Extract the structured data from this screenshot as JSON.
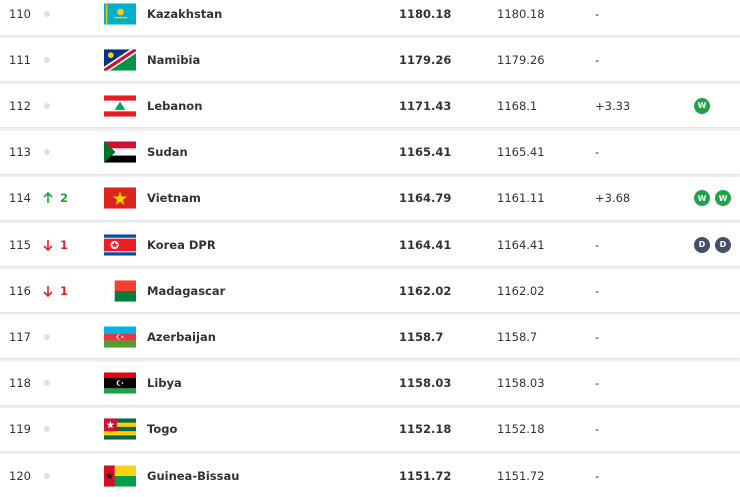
{
  "table": {
    "rows": [
      {
        "rank": "110",
        "movement": null,
        "country": "Kazakhstan",
        "total": 1180.18,
        "previous": 1180.18,
        "change": "-",
        "form": []
      },
      {
        "rank": "111",
        "movement": null,
        "country": "Namibia",
        "total": 1179.26,
        "previous": 1179.26,
        "change": "-",
        "form": []
      },
      {
        "rank": "112",
        "movement": null,
        "country": "Lebanon",
        "total": 1171.43,
        "previous": 1168.1,
        "change": "+3.33",
        "form": [
          {
            "result": "W",
            "color": "#1fa346"
          }
        ]
      },
      {
        "rank": "113",
        "movement": null,
        "country": "Sudan",
        "total": 1165.41,
        "previous": 1165.41,
        "change": "-",
        "form": []
      },
      {
        "rank": "114",
        "movement": {
          "direction": "up",
          "places": "2",
          "color": "#2a9d3a"
        },
        "country": "Vietnam",
        "total": 1164.79,
        "previous": 1161.11,
        "change": "+3.68",
        "form": [
          {
            "result": "W",
            "color": "#1fa346"
          },
          {
            "result": "W",
            "color": "#1fa346"
          }
        ]
      },
      {
        "rank": "115",
        "movement": {
          "direction": "down",
          "places": "1",
          "color": "#d4272c"
        },
        "country": "Korea DPR",
        "total": 1164.41,
        "previous": 1164.41,
        "change": "-",
        "form": [
          {
            "result": "D",
            "color": "#474e66"
          },
          {
            "result": "D",
            "color": "#474e66"
          }
        ]
      },
      {
        "rank": "116",
        "movement": {
          "direction": "down",
          "places": "1",
          "color": "#d4272c"
        },
        "country": "Madagascar",
        "total": 1162.02,
        "previous": 1162.02,
        "change": "-",
        "form": []
      },
      {
        "rank": "117",
        "movement": null,
        "country": "Azerbaijan",
        "total": 1158.7,
        "previous": 1158.7,
        "change": "-",
        "form": []
      },
      {
        "rank": "118",
        "movement": null,
        "country": "Libya",
        "total": 1158.03,
        "previous": 1158.03,
        "change": "-",
        "form": []
      },
      {
        "rank": "119",
        "movement": null,
        "country": "Togo",
        "total": 1152.18,
        "previous": 1152.18,
        "change": "-",
        "form": []
      },
      {
        "rank": "120",
        "movement": null,
        "country": "Guinea-Bissau",
        "total": 1151.72,
        "previous": 1151.72,
        "change": "-",
        "form": []
      }
    ]
  }
}
